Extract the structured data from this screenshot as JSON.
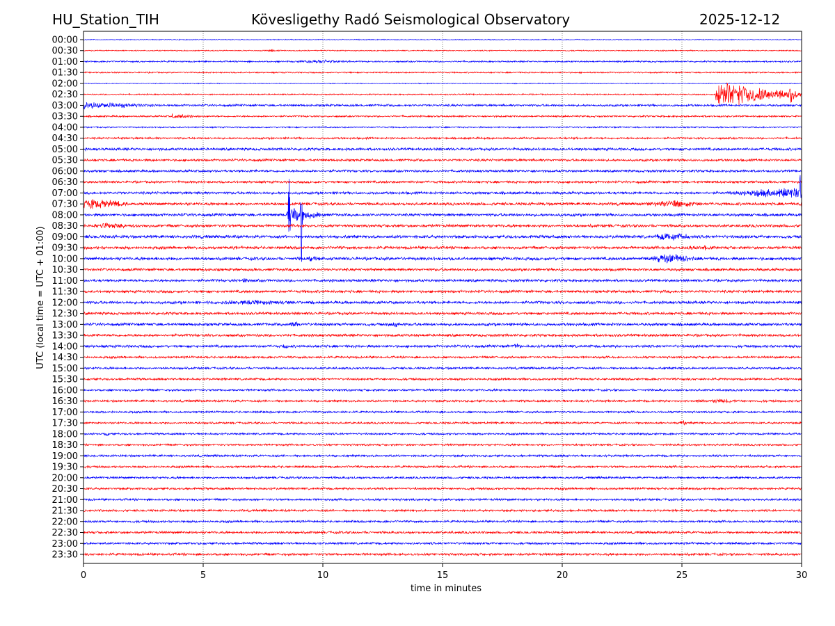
{
  "header": {
    "station": "HU_Station_TIH",
    "observatory": "Kövesligethy Radó Seismological Observatory",
    "date": "2025-12-12"
  },
  "chart_data": {
    "type": "line",
    "title": "Kövesligethy Radó Seismological Observatory",
    "xlabel": "time in minutes",
    "ylabel": "UTC (local time = UTC + 01:00)",
    "xlim": [
      0,
      30
    ],
    "xticks": [
      0,
      5,
      10,
      15,
      20,
      25,
      30
    ],
    "grid": "vertical dotted at 5-minute ticks",
    "row_labels": [
      "00:00",
      "00:30",
      "01:00",
      "01:30",
      "02:00",
      "02:30",
      "03:00",
      "03:30",
      "04:00",
      "04:30",
      "05:00",
      "05:30",
      "06:00",
      "06:30",
      "07:00",
      "07:30",
      "08:00",
      "08:30",
      "09:00",
      "09:30",
      "10:00",
      "10:30",
      "11:00",
      "11:30",
      "12:00",
      "12:30",
      "13:00",
      "13:30",
      "14:00",
      "14:30",
      "15:00",
      "15:30",
      "16:00",
      "16:30",
      "17:00",
      "17:30",
      "18:00",
      "18:30",
      "19:00",
      "19:30",
      "20:00",
      "20:30",
      "21:00",
      "21:30",
      "22:00",
      "22:30",
      "23:00",
      "23:30"
    ],
    "colors": [
      "#0000ff",
      "#ff0000"
    ],
    "noise_level": [
      0.4,
      0.5,
      0.7,
      0.6,
      0.4,
      0.6,
      1,
      0.8,
      0.6,
      0.9,
      1.2,
      1.1,
      1.1,
      1.1,
      1.2,
      1.3,
      1.3,
      1.3,
      1.4,
      1.3,
      1.4,
      1.2,
      1.2,
      1.2,
      1.3,
      1.2,
      1.3,
      1.2,
      1.2,
      1,
      1,
      1,
      1,
      1,
      0.9,
      0.9,
      0.9,
      0.9,
      1,
      1,
      1,
      1,
      1,
      1,
      1,
      1.1,
      1,
      1.1
    ],
    "events": [
      {
        "row": 1,
        "start": 7.7,
        "duration": 0.3,
        "amp": 2
      },
      {
        "row": 2,
        "start": 8.5,
        "duration": 3,
        "amp": 2
      },
      {
        "row": 5,
        "start": 26.4,
        "duration": 3.6,
        "amp": 14,
        "decay": true
      },
      {
        "row": 5,
        "start": 29.3,
        "duration": 0.5,
        "amp": 10
      },
      {
        "row": 6,
        "start": 0,
        "duration": 3.5,
        "amp": 4,
        "decay": true
      },
      {
        "row": 7,
        "start": 3.7,
        "duration": 1.6,
        "amp": 3,
        "decay": true
      },
      {
        "row": 14,
        "start": 27,
        "duration": 3,
        "amp": 7,
        "grow": true
      },
      {
        "row": 14,
        "start": 29.9,
        "duration": 0.1,
        "amp": 18
      },
      {
        "row": 15,
        "start": 0,
        "duration": 2.5,
        "amp": 6,
        "decay": true
      },
      {
        "row": 15,
        "start": 23.3,
        "duration": 2.7,
        "amp": 4
      },
      {
        "row": 16,
        "start": 8.55,
        "duration": 0.1,
        "amp": 55
      },
      {
        "row": 16,
        "start": 9.05,
        "duration": 0.1,
        "amp": 50
      },
      {
        "row": 16,
        "start": 8.5,
        "duration": 1.6,
        "amp": 9,
        "decay": true
      },
      {
        "row": 17,
        "start": 0,
        "duration": 2.3,
        "amp": 3
      },
      {
        "row": 18,
        "start": 23.8,
        "duration": 1.6,
        "amp": 5
      },
      {
        "row": 19,
        "start": 25,
        "duration": 1.5,
        "amp": 3
      },
      {
        "row": 20,
        "start": 9.4,
        "duration": 1.4,
        "amp": 3,
        "decay": true
      },
      {
        "row": 20,
        "start": 23.4,
        "duration": 2.2,
        "amp": 5
      },
      {
        "row": 22,
        "start": 6.5,
        "duration": 0.5,
        "amp": 3
      },
      {
        "row": 24,
        "start": 5,
        "duration": 4.5,
        "amp": 2.5
      },
      {
        "row": 26,
        "start": 8.5,
        "duration": 0.8,
        "amp": 3
      },
      {
        "row": 26,
        "start": 12.8,
        "duration": 0.5,
        "amp": 3
      },
      {
        "row": 28,
        "start": 8.3,
        "duration": 0.3,
        "amp": 3
      },
      {
        "row": 28,
        "start": 17.8,
        "duration": 0.6,
        "amp": 3
      },
      {
        "row": 33,
        "start": 25.5,
        "duration": 2,
        "amp": 2.5
      },
      {
        "row": 35,
        "start": 24.9,
        "duration": 0.3,
        "amp": 3
      },
      {
        "row": 36,
        "start": 0.8,
        "duration": 0.3,
        "amp": 3
      }
    ]
  }
}
